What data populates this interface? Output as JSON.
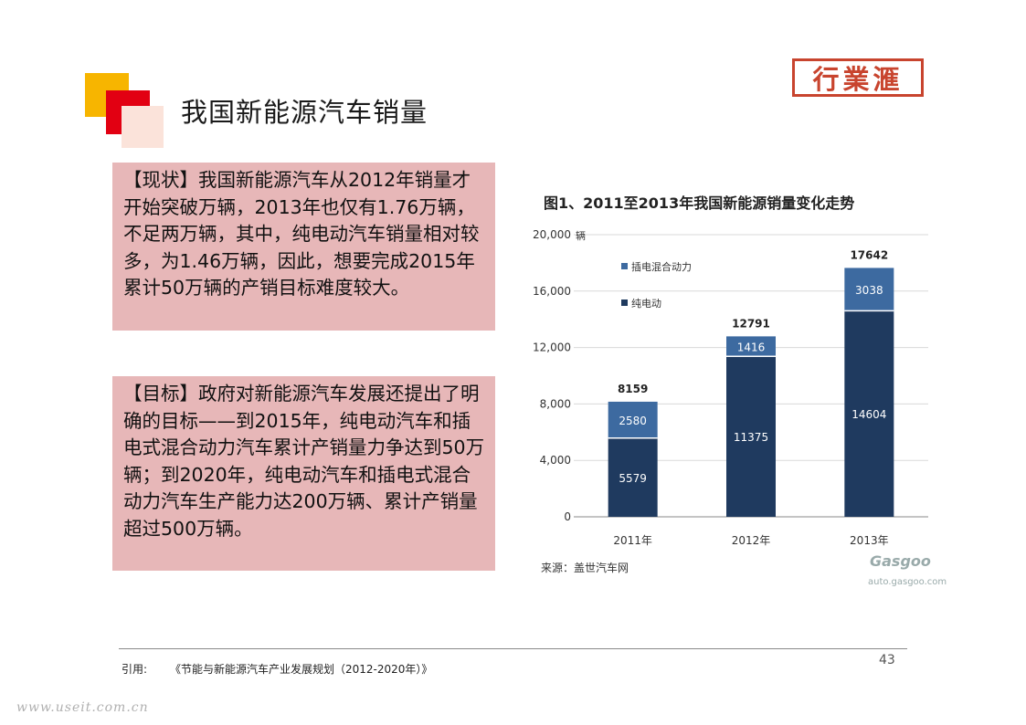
{
  "page": {
    "title": "我国新能源汽车销量",
    "logo_text": "行業滙",
    "page_number": "43",
    "citation_label": "引用:",
    "citation_text": "《节能与新能源汽车产业发展规划（2012-2020年）》",
    "watermark": "www.useit.com.cn"
  },
  "boxes": {
    "status_text": "【现状】我国新能源汽车从2012年销量才开始突破万辆，2013年也仅有1.76万辆，不足两万辆，其中，纯电动汽车销量相对较多，为1.46万辆，因此，想要完成2015年累计50万辆的产销目标难度较大。",
    "goal_text": "【目标】政府对新能源汽车发展还提出了明确的目标——到2015年，纯电动汽车和插电式混合动力汽车累计产销量力争达到50万辆；到2020年，纯电动汽车和插电式混合动力汽车生产能力达200万辆、累计产销量超过500万辆。"
  },
  "colors": {
    "bev": "#1f3a5f",
    "phev": "#3d6aa0",
    "box_bg": "#e7b7b8",
    "accent_red": "#e20012",
    "accent_yellow": "#f7b500"
  },
  "chart_data": {
    "type": "bar",
    "stacked": true,
    "title": "图1、2011至2013年我国新能源销量变化走势",
    "categories": [
      "2011年",
      "2012年",
      "2013年"
    ],
    "series": [
      {
        "name": "纯电动",
        "values": [
          5579,
          11375,
          14604
        ]
      },
      {
        "name": "插电混合动力",
        "values": [
          2580,
          1416,
          3038
        ]
      }
    ],
    "totals": [
      8159,
      12791,
      17642
    ],
    "y_unit": "辆",
    "y_ticks": [
      "0",
      "4,000",
      "8,000",
      "12,000",
      "16,000",
      "20,000"
    ],
    "ylim": [
      0,
      20000
    ],
    "grid": true,
    "legend_position": "top-left",
    "source": "来源：盖世汽车网",
    "source_logo": "Gasgoo",
    "source_url": "auto.gasgoo.com"
  }
}
